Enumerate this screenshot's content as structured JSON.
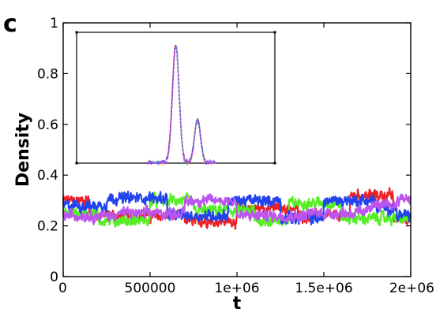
{
  "panel_label": "c",
  "chart_data": {
    "type": "line",
    "title": "",
    "xlabel": "t",
    "ylabel": "Density",
    "xlim": [
      0,
      2000000
    ],
    "ylim": [
      0,
      1
    ],
    "x_ticks": [
      0,
      500000,
      1000000,
      1500000,
      2000000
    ],
    "x_tick_labels": [
      "0",
      "500000",
      "1e+06",
      "1.5e+06",
      "2e+06"
    ],
    "y_ticks": [
      0,
      0.2,
      0.4,
      0.6,
      0.8,
      1
    ],
    "y_tick_labels": [
      "0",
      "0.2",
      "0.4",
      "0.6",
      "0.8",
      "1"
    ],
    "grid": false,
    "series": [
      {
        "color": "#ee2222",
        "level_segments": [
          [
            0,
            0.3
          ],
          [
            150000,
            0.24
          ],
          [
            700000,
            0.22
          ],
          [
            1000000,
            0.27
          ],
          [
            1350000,
            0.24
          ],
          [
            1650000,
            0.32
          ],
          [
            1900000,
            0.23
          ]
        ]
      },
      {
        "color": "#55ee22",
        "level_segments": [
          [
            0,
            0.25
          ],
          [
            200000,
            0.22
          ],
          [
            500000,
            0.3
          ],
          [
            750000,
            0.26
          ],
          [
            1100000,
            0.22
          ],
          [
            1300000,
            0.29
          ],
          [
            1600000,
            0.23
          ]
        ]
      },
      {
        "color": "#2244ee",
        "level_segments": [
          [
            0,
            0.28
          ],
          [
            250000,
            0.31
          ],
          [
            600000,
            0.24
          ],
          [
            950000,
            0.3
          ],
          [
            1250000,
            0.23
          ],
          [
            1500000,
            0.3
          ],
          [
            1800000,
            0.27
          ],
          [
            1920000,
            0.24
          ]
        ]
      },
      {
        "color": "#bb55ee",
        "level_segments": [
          [
            0,
            0.24
          ],
          [
            300000,
            0.25
          ],
          [
            700000,
            0.3
          ],
          [
            1000000,
            0.24
          ],
          [
            1400000,
            0.25
          ],
          [
            1750000,
            0.28
          ],
          [
            1920000,
            0.31
          ]
        ]
      }
    ],
    "inset": {
      "type": "histogram",
      "peaks": [
        {
          "center": 0.25,
          "height": 0.9
        },
        {
          "center": 0.305,
          "height": 0.33
        }
      ]
    }
  }
}
